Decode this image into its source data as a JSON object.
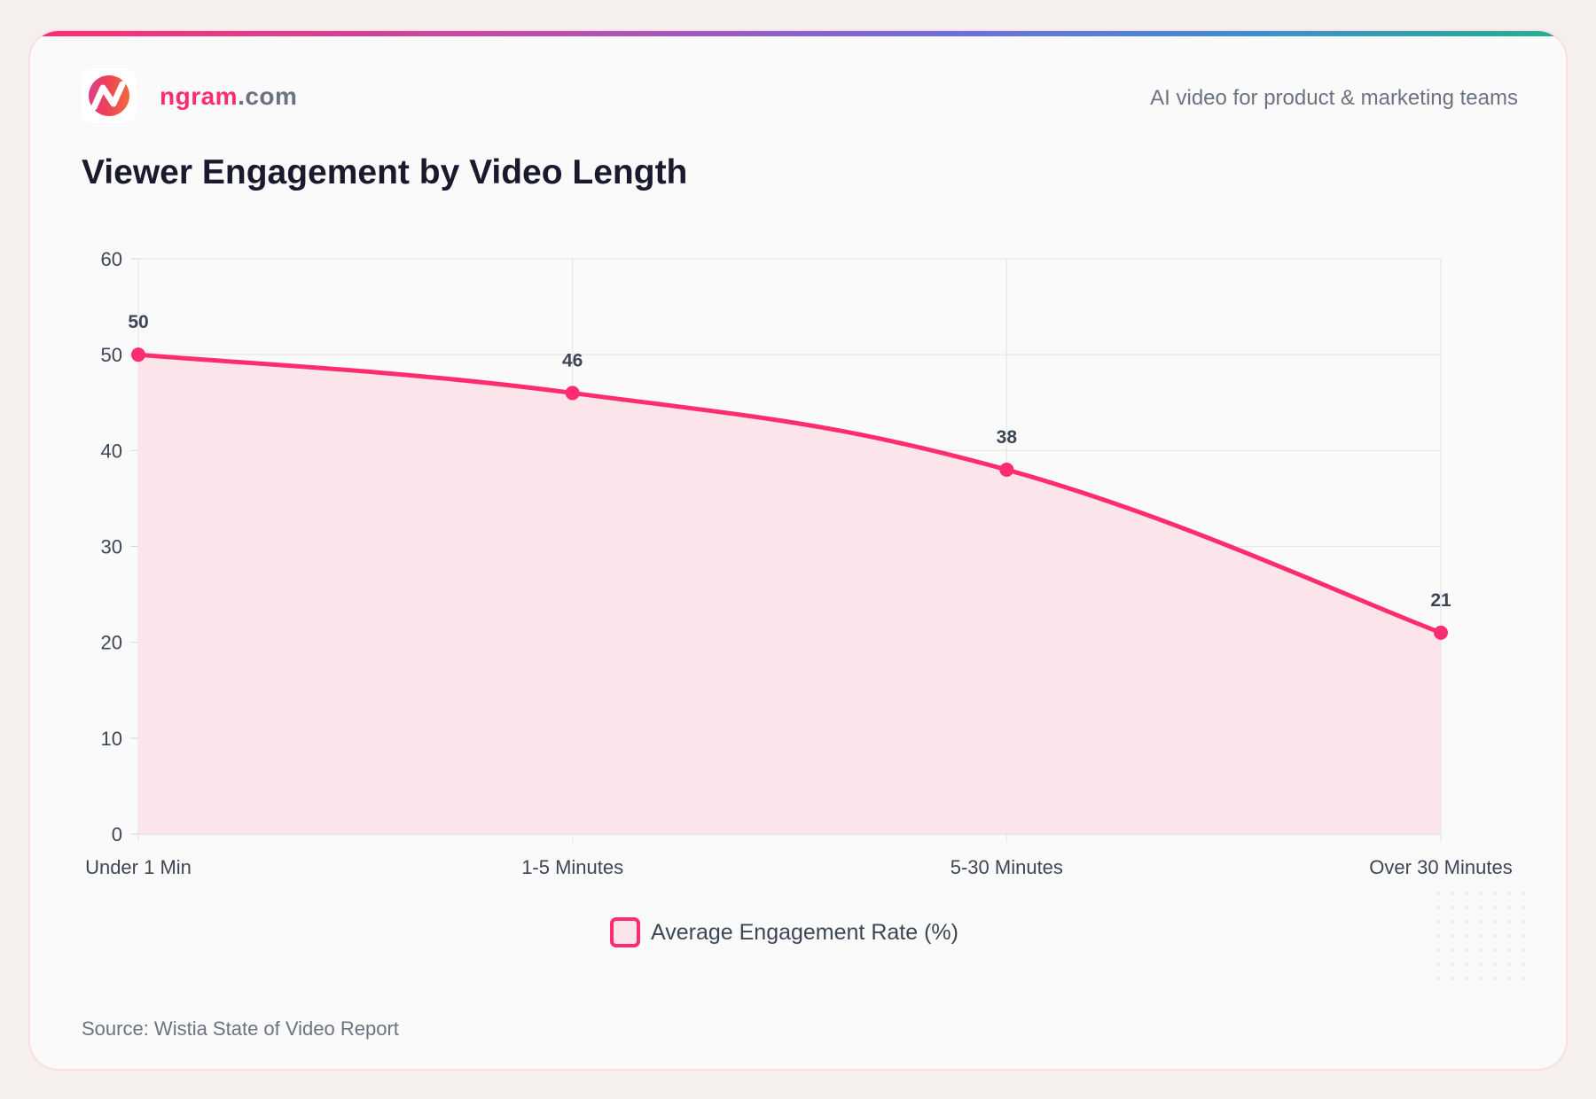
{
  "brand": {
    "name_accent": "ngram",
    "name_rest": ".com",
    "tagline": "AI video for product & marketing teams"
  },
  "colors": {
    "accent": "#ff2d6f",
    "fill": "#fbe4ea"
  },
  "chart_data": {
    "type": "area",
    "title": "Viewer Engagement by Video Length",
    "categories": [
      "Under 1 Min",
      "1-5 Minutes",
      "5-30 Minutes",
      "Over 30 Minutes"
    ],
    "series": [
      {
        "name": "Average Engagement Rate (%)",
        "values": [
          50,
          46,
          38,
          21
        ]
      }
    ],
    "ylim": [
      0,
      60
    ],
    "yticks": [
      0,
      10,
      20,
      30,
      40,
      50,
      60
    ],
    "grid": true,
    "legend": "bottom-center",
    "xlabel": "",
    "ylabel": ""
  },
  "source": "Source: Wistia State of Video Report"
}
